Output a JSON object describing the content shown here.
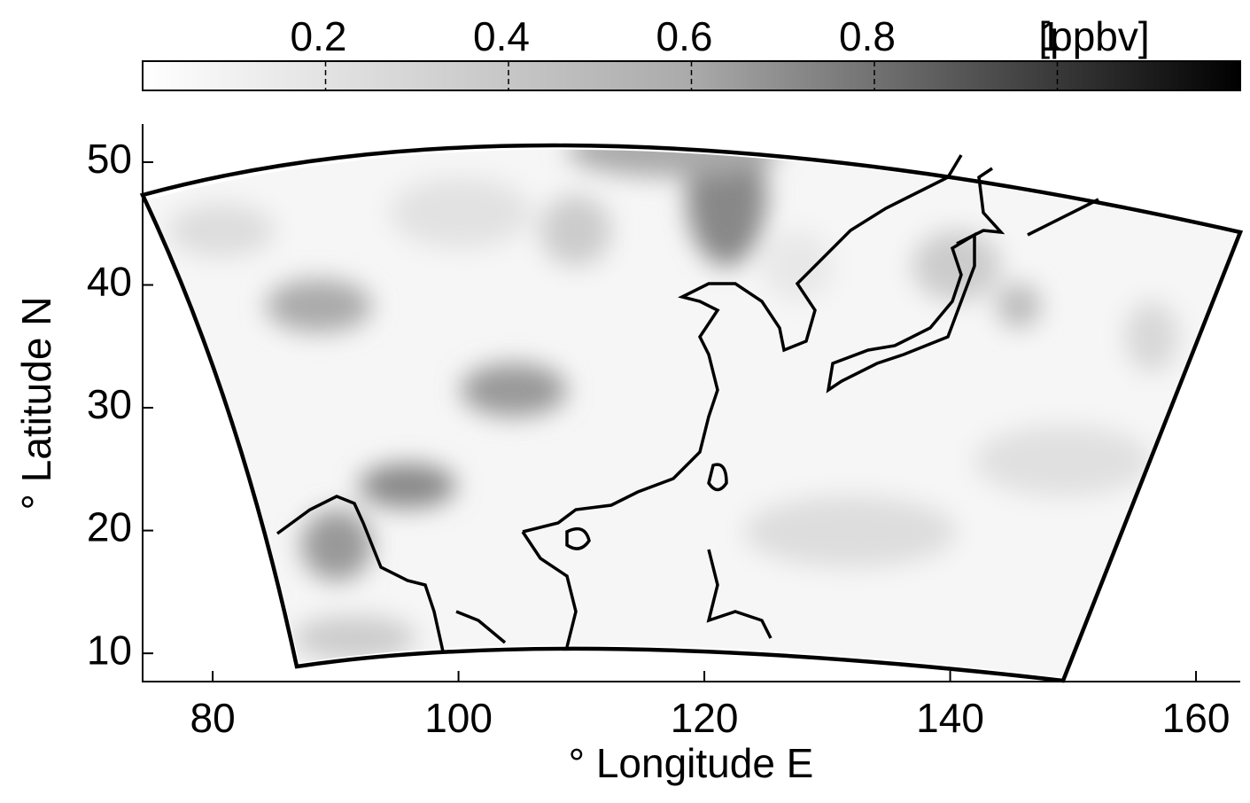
{
  "colorbar": {
    "lim": [
      0,
      1.2
    ],
    "ticks": [
      0.2,
      0.4,
      0.6,
      0.8,
      1
    ],
    "unit": "[ppbv]"
  },
  "map": {
    "xlabel": "° Longitude E",
    "ylabel": "° Latitude N",
    "xlim": [
      74.3,
      163.6
    ],
    "ylim": [
      7.7,
      53.1
    ],
    "xticks": [
      80,
      100,
      120,
      140,
      160
    ],
    "yticks": [
      10,
      20,
      30,
      40,
      50
    ]
  }
}
